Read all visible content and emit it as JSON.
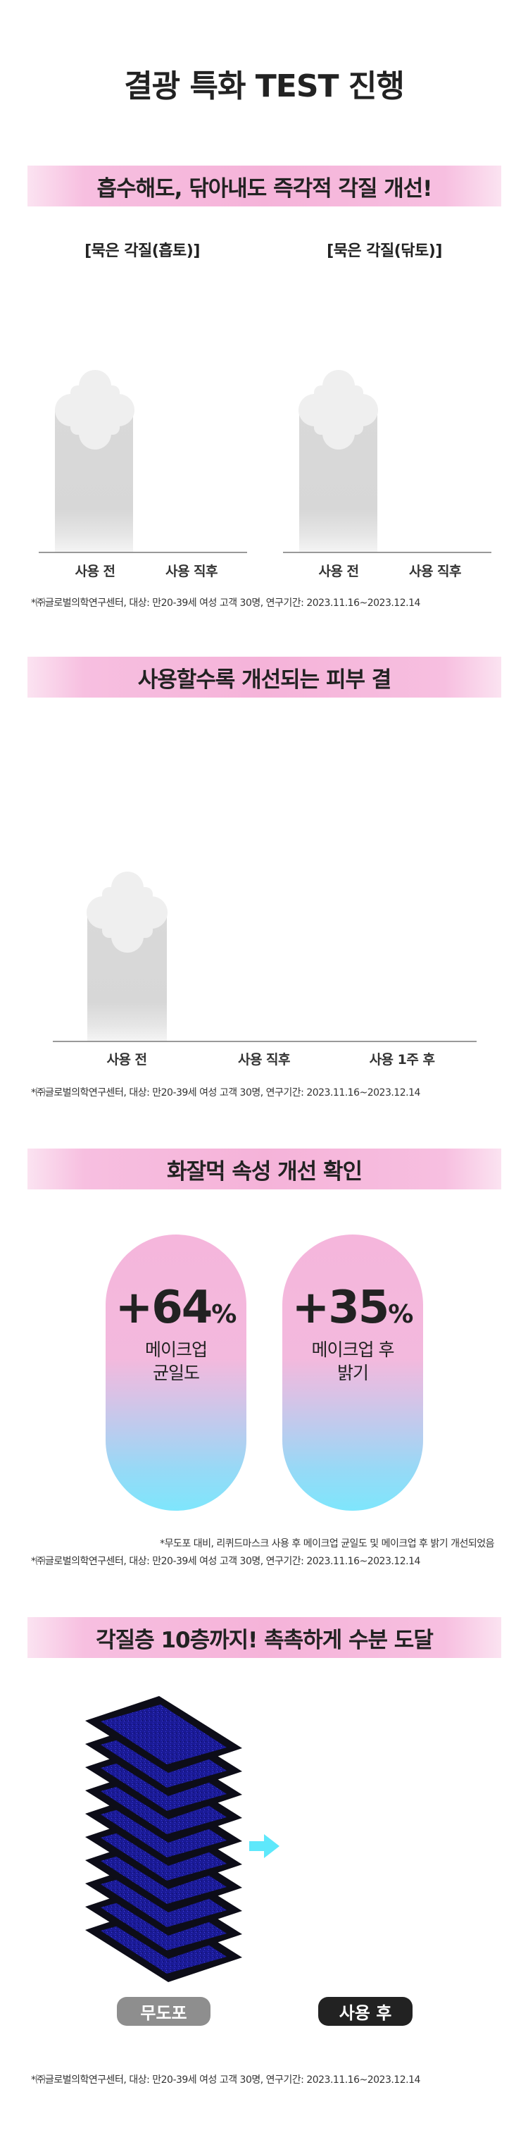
{
  "page_title": "결광 특화 TEST 진행",
  "section1": {
    "heading": "흡수해도, 닦아내도 즉각적 각질 개선!",
    "charts": [
      {
        "subtitle": "[묵은 각질(흡토)]",
        "categories": [
          "사용 전",
          "사용 직후"
        ]
      },
      {
        "subtitle": "[묵은 각질(닦토)]",
        "categories": [
          "사용 전",
          "사용 직후"
        ]
      }
    ],
    "footnote": "*㈜글로벌의학연구센터, 대상: 만20-39세 여성 고객 30명, 연구기간: 2023.11.16~2023.12.14"
  },
  "section2": {
    "heading": "사용할수록 개선되는 피부 결",
    "categories": [
      "사용 전",
      "사용 직후",
      "사용 1주 후"
    ],
    "footnote": "*㈜글로벌의학연구센터, 대상: 만20-39세 여성 고객 30명, 연구기간: 2023.11.16~2023.12.14"
  },
  "section3": {
    "heading": "화잘먹 속성 개선 확인",
    "stats": [
      {
        "value": "+64",
        "unit": "%",
        "label": "메이크업\n균일도"
      },
      {
        "value": "+35",
        "unit": "%",
        "label": "메이크업 후\n밝기"
      }
    ],
    "note": "*무도포 대비, 리퀴드마스크 사용 후 메이크업 균일도 및 메이크업 후 밝기 개선되었음",
    "footnote": "*㈜글로벌의학연구센터, 대상: 만20-39세 여성 고객 30명, 연구기간: 2023.11.16~2023.12.14"
  },
  "section4": {
    "heading": "각질층 10층까지! 촉촉하게 수분 도달",
    "before_label": "무도포",
    "after_label": "사용 후",
    "footnote": "*㈜글로벌의학연구센터, 대상: 만20-39세 여성 고객 30명, 연구기간: 2023.11.16~2023.12.14"
  },
  "colors": {
    "band_pink": "#f5b3d9",
    "pill_top": "#f5b6dc",
    "pill_bottom": "#7ee6fc",
    "arrow": "#5ee8fb",
    "layer_dark": "#0d0d18",
    "layer_blue": "#1c1ca0",
    "tag_before": "#8e8e8e",
    "tag_after": "#222222"
  }
}
